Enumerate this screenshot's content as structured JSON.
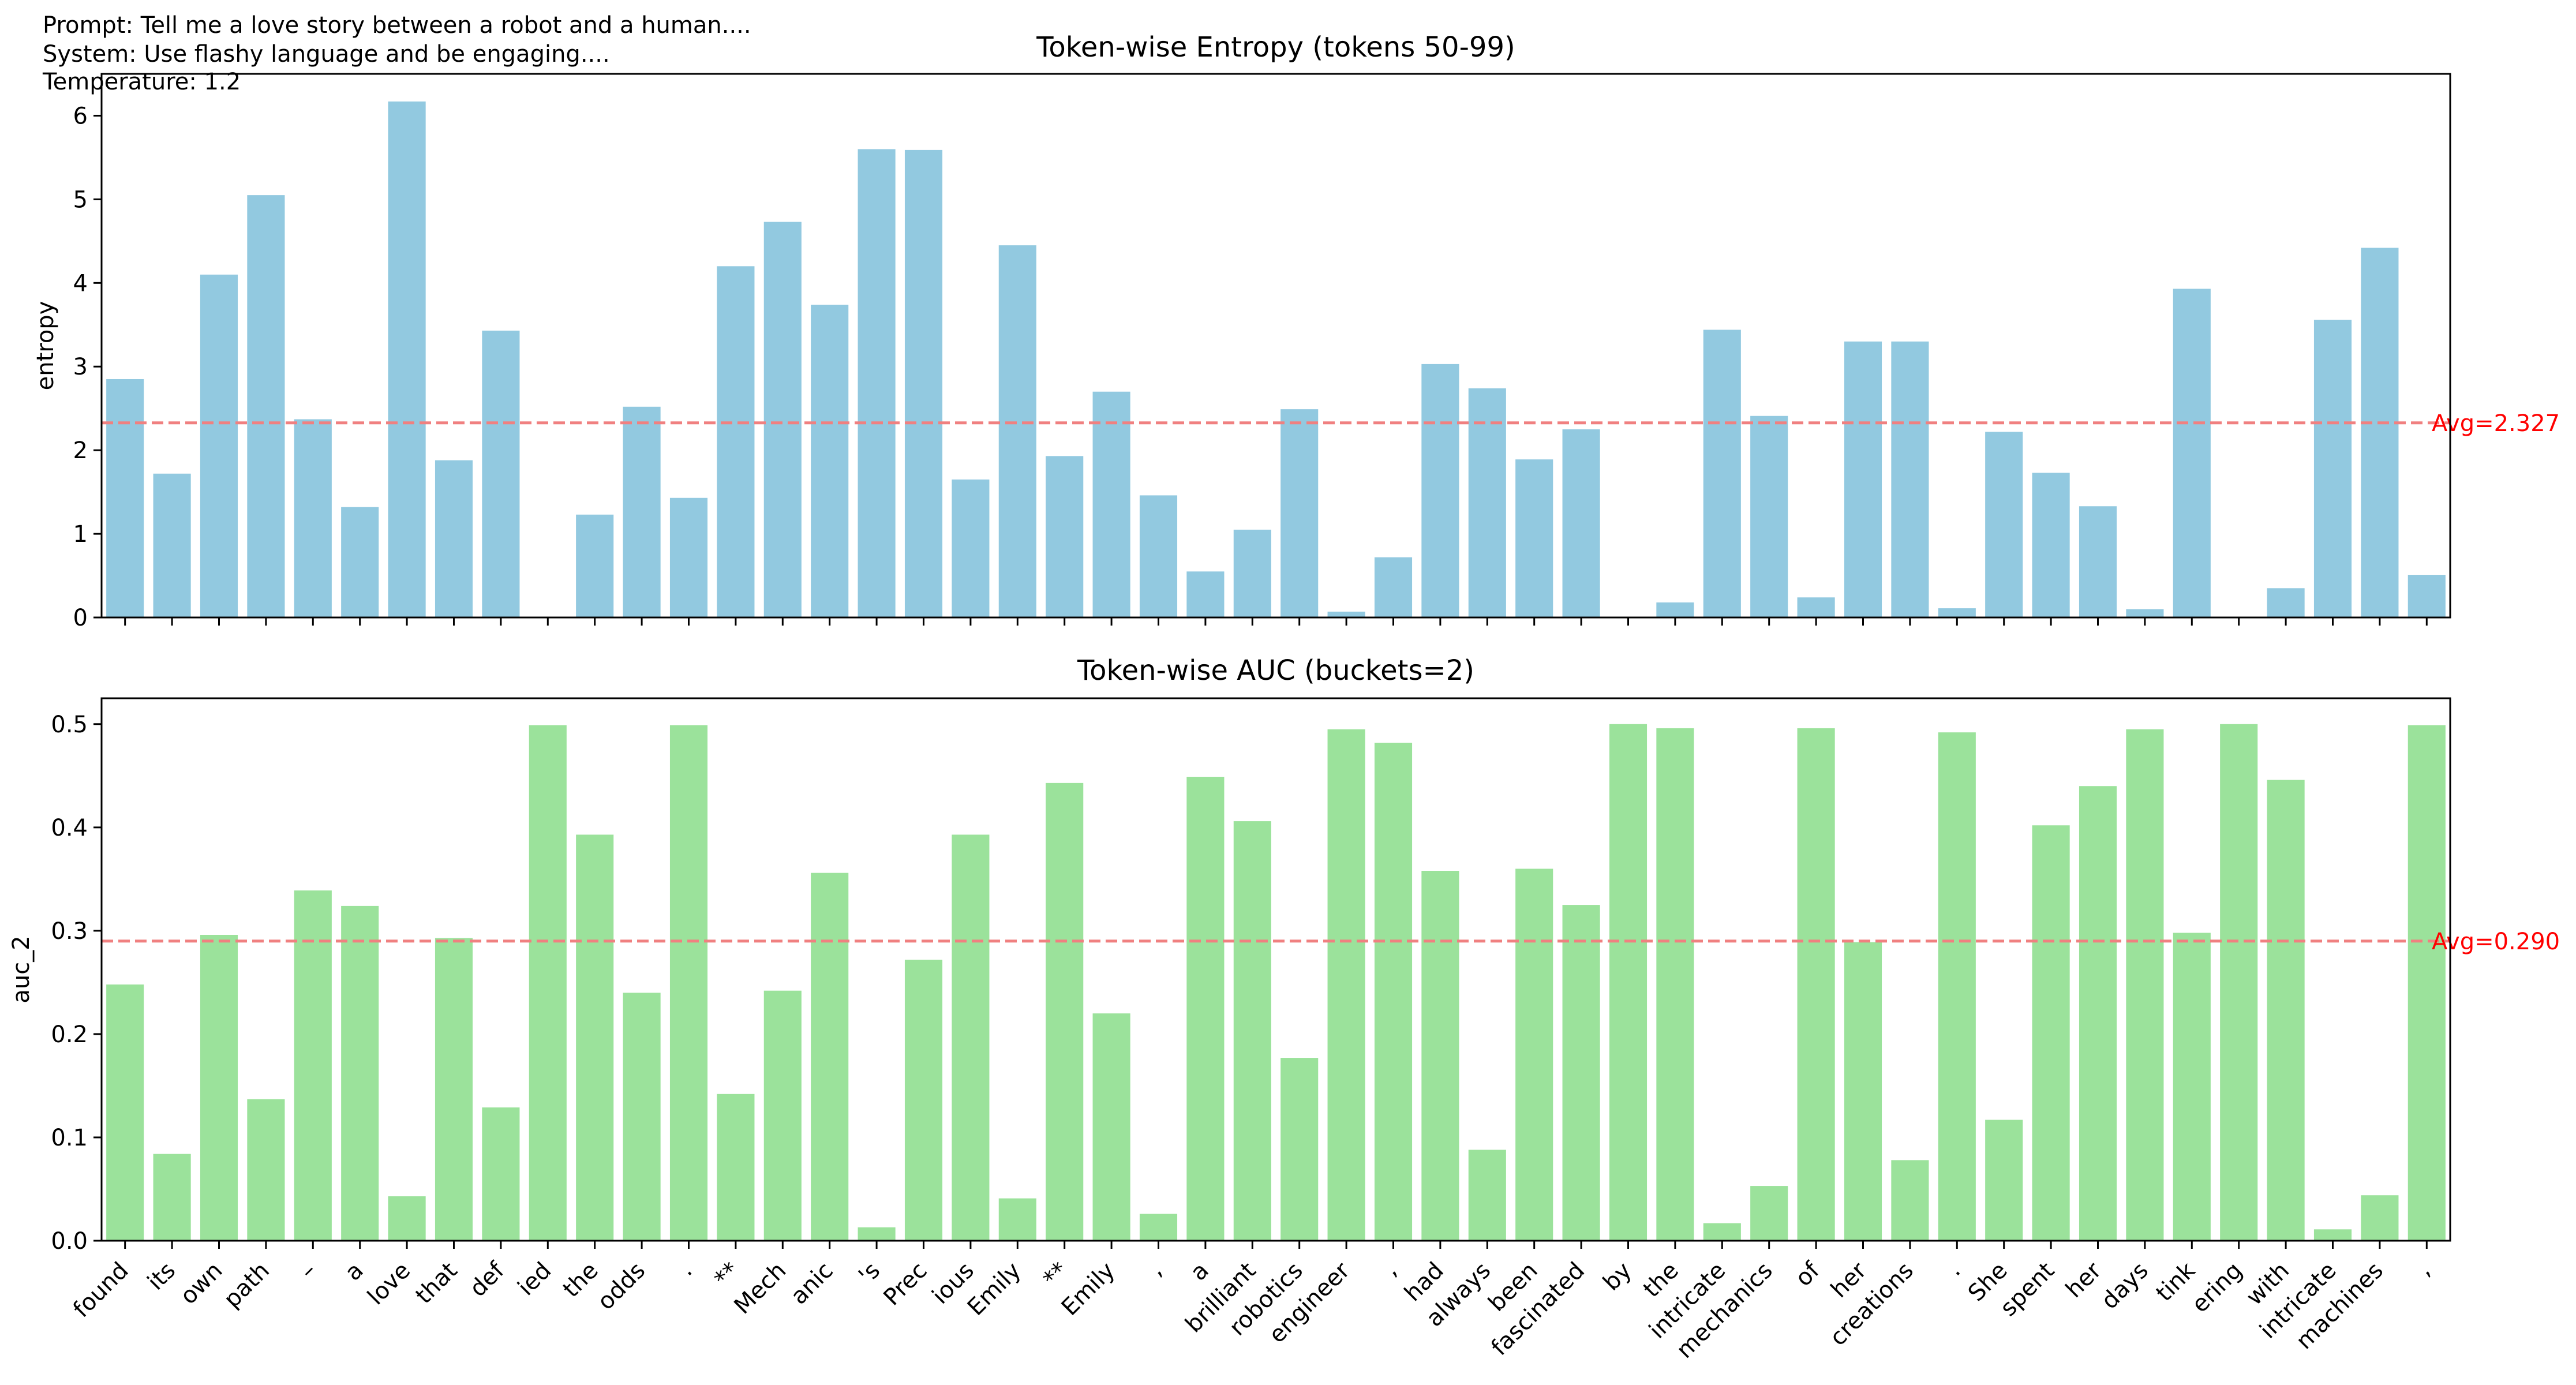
{
  "header": {
    "prompt": "Prompt: Tell me a love story between a robot and a human....",
    "system": "System: Use flashy language and be engaging....",
    "temperature": "Temperature: 1.2"
  },
  "colors": {
    "entropy_bar": "#92c9e0",
    "auc_bar": "#9be29b",
    "avg_line": "#f08080",
    "avg_text": "#ff0000"
  },
  "chart_data": [
    {
      "type": "bar",
      "title": "Token-wise Entropy (tokens 50-99)",
      "ylabel": "entropy",
      "ylim": [
        0,
        6.5
      ],
      "yticks": [
        0,
        1,
        2,
        3,
        4,
        5,
        6
      ],
      "average": 2.327,
      "average_label": "Avg=2.327",
      "categories": [
        "found",
        "its",
        "own",
        "path",
        "–",
        "a",
        "love",
        "that",
        "def",
        "ied",
        "the",
        "odds",
        ".",
        "**",
        "Mech",
        "anic",
        "'s",
        "Prec",
        "ious",
        "Emily",
        "**",
        "Emily",
        ",",
        "a",
        "brilliant",
        "robotics",
        "engineer",
        ",",
        "had",
        "always",
        "been",
        "fascinated",
        "by",
        "the",
        "intricate",
        "mechanics",
        "of",
        "her",
        "creations",
        ".",
        "She",
        "spent",
        "her",
        "days",
        "tink",
        "ering",
        "with",
        "intricate",
        "machines",
        ","
      ],
      "values": [
        2.85,
        1.72,
        4.1,
        5.05,
        2.37,
        1.32,
        6.17,
        1.88,
        3.43,
        0.0,
        1.23,
        2.52,
        1.43,
        4.2,
        4.73,
        3.74,
        5.6,
        5.59,
        1.65,
        4.45,
        1.93,
        2.7,
        1.46,
        0.55,
        1.05,
        2.49,
        0.07,
        0.72,
        3.03,
        2.74,
        1.89,
        2.25,
        0.0,
        0.18,
        3.44,
        2.41,
        0.24,
        3.3,
        3.3,
        0.11,
        2.22,
        1.73,
        1.33,
        0.1,
        3.93,
        0.0,
        0.35,
        3.56,
        4.42,
        0.51
      ],
      "grid": false
    },
    {
      "type": "bar",
      "title": "Token-wise AUC (buckets=2)",
      "ylabel": "auc_2",
      "ylim": [
        0,
        0.525
      ],
      "yticks": [
        0.0,
        0.1,
        0.2,
        0.3,
        0.4,
        0.5
      ],
      "average": 0.29,
      "average_label": "Avg=0.290",
      "categories": [
        "found",
        "its",
        "own",
        "path",
        "–",
        "a",
        "love",
        "that",
        "def",
        "ied",
        "the",
        "odds",
        ".",
        "**",
        "Mech",
        "anic",
        "'s",
        "Prec",
        "ious",
        "Emily",
        "**",
        "Emily",
        ",",
        "a",
        "brilliant",
        "robotics",
        "engineer",
        ",",
        "had",
        "always",
        "been",
        "fascinated",
        "by",
        "the",
        "intricate",
        "mechanics",
        "of",
        "her",
        "creations",
        ".",
        "She",
        "spent",
        "her",
        "days",
        "tink",
        "ering",
        "with",
        "intricate",
        "machines",
        ","
      ],
      "values": [
        0.248,
        0.084,
        0.296,
        0.137,
        0.339,
        0.324,
        0.043,
        0.293,
        0.129,
        0.499,
        0.393,
        0.24,
        0.499,
        0.142,
        0.242,
        0.356,
        0.013,
        0.272,
        0.393,
        0.041,
        0.443,
        0.22,
        0.026,
        0.449,
        0.406,
        0.177,
        0.495,
        0.482,
        0.358,
        0.088,
        0.36,
        0.325,
        0.5,
        0.496,
        0.017,
        0.053,
        0.496,
        0.289,
        0.078,
        0.492,
        0.117,
        0.402,
        0.44,
        0.495,
        0.298,
        0.5,
        0.446,
        0.011,
        0.044,
        0.499
      ],
      "grid": false
    }
  ]
}
